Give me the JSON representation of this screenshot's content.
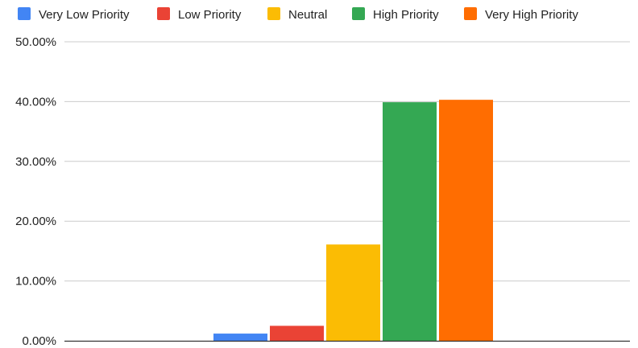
{
  "chart_data": {
    "type": "bar",
    "categories": [
      ""
    ],
    "series": [
      {
        "name": "Very Low Priority",
        "values": [
          1.2
        ],
        "color": "#4285F4"
      },
      {
        "name": "Low Priority",
        "values": [
          2.5
        ],
        "color": "#EA4335"
      },
      {
        "name": "Neutral",
        "values": [
          16.1
        ],
        "color": "#FBBC04"
      },
      {
        "name": "High Priority",
        "values": [
          39.9
        ],
        "color": "#34A853"
      },
      {
        "name": "Very High Priority",
        "values": [
          40.3
        ],
        "color": "#FF6D01"
      }
    ],
    "yticks": [
      "0.00%",
      "10.00%",
      "20.00%",
      "30.00%",
      "40.00%",
      "50.00%"
    ],
    "ylim": [
      0,
      50
    ],
    "grid": true,
    "legend_position": "top"
  }
}
